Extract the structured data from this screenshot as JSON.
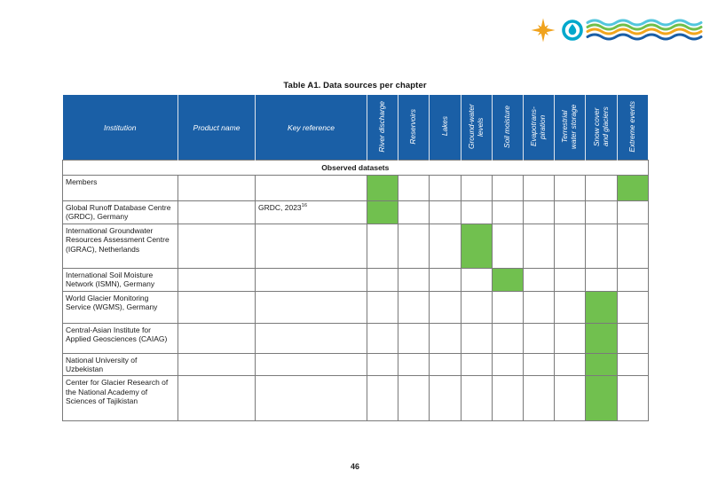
{
  "title": "Table A1. Data sources per chapter",
  "page": {
    "number": "46"
  },
  "colors": {
    "header_blue": "#1a5fa6",
    "mark_green": "#71c04f",
    "grid_gray": "#7a7a7a"
  },
  "logo": {
    "star_icon": "compass-star-icon",
    "drop_icon": "water-drop-icon",
    "waves_icon": "wave-lines-icon",
    "star_color": "#f0a31e",
    "drop_color": "#00a8cc",
    "wave_colors": [
      "#53c6dd",
      "#71bf4b",
      "#f2a51c",
      "#1a5ea6"
    ]
  },
  "table": {
    "main_columns": [
      "Institution",
      "Product name",
      "Key reference"
    ],
    "indicator_columns": [
      "River discharge",
      "Reservoirs",
      "Lakes",
      "Ground-water levels",
      "Soil moisture",
      "Evapotrans-piration",
      "Terrestrial water storage",
      "Snow cover and glaciers",
      "Extreme events"
    ],
    "section_label": "Observed datasets",
    "rows": [
      {
        "institution": "Members",
        "product_name": "",
        "key_reference": "",
        "marks": [
          "River discharge",
          "Extreme events"
        ]
      },
      {
        "institution": "Global Runoff Database Centre (GRDC), Germany",
        "product_name": "",
        "key_reference": "GRDC, 2023",
        "key_reference_superscript": "16",
        "marks": [
          "River discharge"
        ]
      },
      {
        "institution": "International Groundwater Resources Assessment Centre (IGRAC), Netherlands",
        "product_name": "",
        "key_reference": "",
        "marks": [
          "Ground-water levels"
        ]
      },
      {
        "institution": "International Soil Moisture Network (ISMN), Germany",
        "product_name": "",
        "key_reference": "",
        "marks": [
          "Soil moisture"
        ]
      },
      {
        "institution": "World Glacier Monitoring Service (WGMS), Germany",
        "product_name": "",
        "key_reference": "",
        "marks": [
          "Snow cover and glaciers"
        ]
      },
      {
        "institution": "Central-Asian Institute for Applied Geosciences (CAIAG)",
        "product_name": "",
        "key_reference": "",
        "marks": [
          "Snow cover and glaciers"
        ]
      },
      {
        "institution": "National University of Uzbekistan",
        "product_name": "",
        "key_reference": "",
        "marks": [
          "Snow cover and glaciers"
        ]
      },
      {
        "institution": "Center for Glacier Research of the National Academy of Sciences of Tajikistan",
        "product_name": "",
        "key_reference": "",
        "marks": [
          "Snow cover and glaciers"
        ]
      }
    ]
  }
}
